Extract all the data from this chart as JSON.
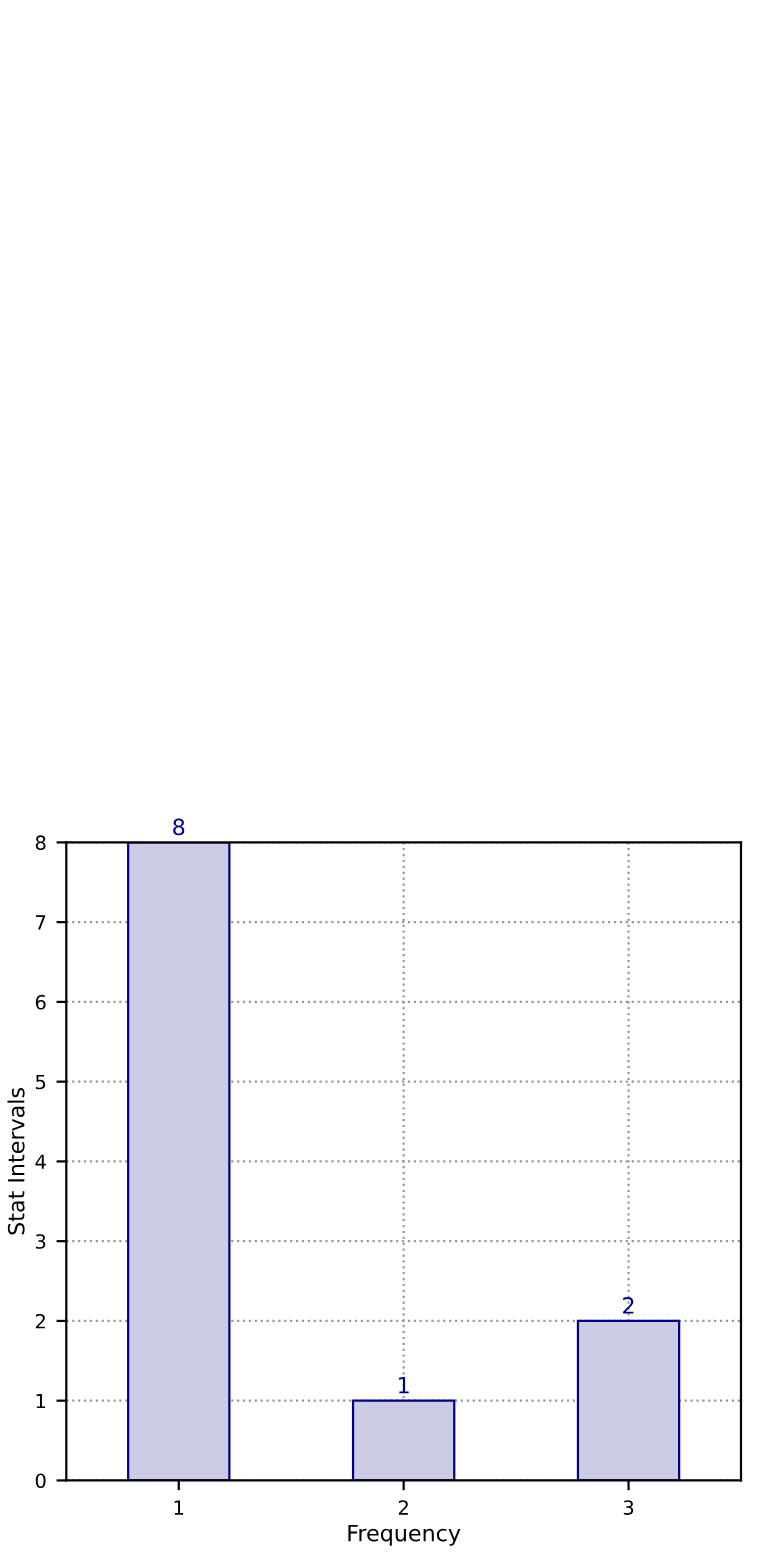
{
  "chart_data": {
    "type": "bar",
    "xlabel": "Frequency",
    "ylabel": "Stat Intervals",
    "categories": [
      "1",
      "2",
      "3"
    ],
    "values": [
      8,
      1,
      2
    ],
    "color": "#ccccE5",
    "ylim": [
      0,
      8
    ],
    "yticks": [
      0,
      1,
      2,
      3,
      4,
      5,
      6,
      7,
      8
    ],
    "grid": true,
    "data_labels": true
  }
}
